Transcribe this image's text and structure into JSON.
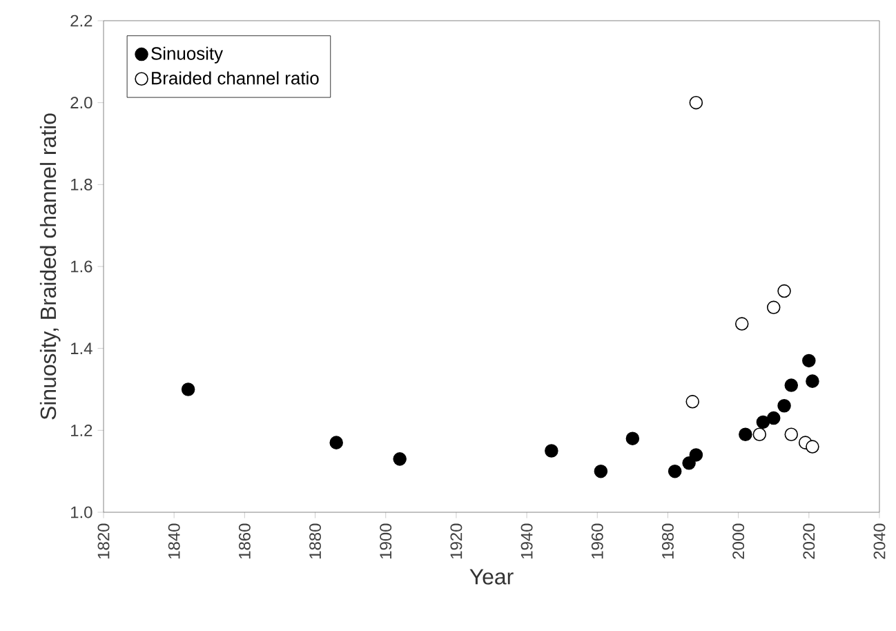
{
  "chart_data": {
    "type": "scatter",
    "xlabel": "Year",
    "ylabel": "Sinuosity, Braided channel ratio",
    "xlim": [
      1820,
      2040
    ],
    "xticks": [
      1820,
      1840,
      1860,
      1880,
      1900,
      1920,
      1940,
      1960,
      1980,
      2000,
      2020,
      2040
    ],
    "ylim": [
      1.0,
      2.2
    ],
    "yticks": [
      {
        "value": 1,
        "label": "1.0"
      },
      1.2,
      1.4,
      1.6,
      1.8,
      {
        "value": 2,
        "label": "2.0"
      },
      2.2
    ],
    "legend": "top left",
    "marker": "circle",
    "grid": false,
    "series": [
      {
        "name": "Sinuosity",
        "color": "#000000",
        "x": [
          1844,
          1886,
          1904,
          1947,
          1961,
          1970,
          1982,
          1986,
          1988,
          2002,
          2007,
          2010,
          2013,
          2015,
          2020,
          2021
        ],
        "values": [
          1.3,
          1.17,
          1.13,
          1.15,
          1.1,
          1.18,
          1.1,
          1.12,
          1.14,
          1.19,
          1.22,
          1.23,
          1.26,
          1.31,
          1.37,
          1.32
        ]
      },
      {
        "name": "Braided channel ratio",
        "color": "#ffffff",
        "x": [
          1987,
          1988,
          2001,
          2006,
          2010,
          2013,
          2015,
          2019,
          2021
        ],
        "values": [
          1.27,
          2.0,
          1.46,
          1.19,
          1.5,
          1.54,
          1.19,
          1.17,
          1.16
        ]
      }
    ]
  }
}
